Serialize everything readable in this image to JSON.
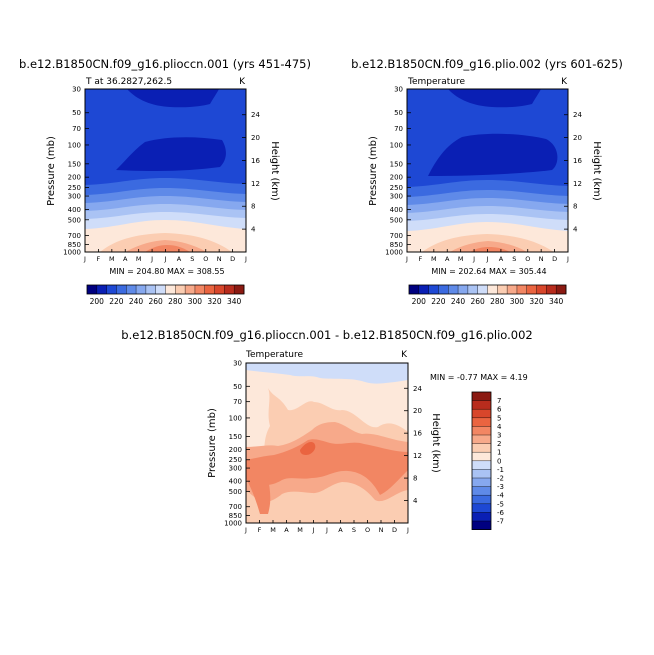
{
  "colors": {
    "cool": [
      "#000080",
      "#0a1fb4",
      "#1e48d4",
      "#3b6ae0",
      "#5f8ae8",
      "#86a8ef",
      "#aac3f4",
      "#cfddf9"
    ],
    "warm": [
      "#fde8da",
      "#fbcdb2",
      "#f7a98a",
      "#f28663",
      "#ea6440",
      "#d8462b",
      "#b82c1d",
      "#8b1a12"
    ]
  },
  "chart_data": [
    {
      "id": "panel-a",
      "type": "contour",
      "title": "b.e12.B1850CN.f09_g16.plioccn.001 (yrs 451-475)",
      "subtitle_left": "T at 36.2827,262.5",
      "subtitle_right": "K",
      "ylabel": "Pressure (mb)",
      "ylabel_right": "Height (km)",
      "months": [
        "J",
        "F",
        "M",
        "A",
        "M",
        "J",
        "J",
        "A",
        "S",
        "O",
        "N",
        "D",
        "J"
      ],
      "pressure_ticks": [
        30,
        50,
        70,
        100,
        150,
        200,
        250,
        300,
        400,
        500,
        700,
        850,
        1000
      ],
      "height_ticks": [
        4,
        8,
        12,
        16,
        20,
        24
      ],
      "minmax_label": "MIN = 204.80  MAX = 308.55",
      "min": 204.8,
      "max": 308.55,
      "colorbar_labels": [
        "200",
        "220",
        "240",
        "260",
        "280",
        "300",
        "320",
        "340"
      ],
      "colorbar_levels": [
        190,
        200,
        210,
        220,
        230,
        240,
        250,
        260,
        270,
        280,
        290,
        300,
        310,
        320,
        330,
        340,
        350
      ]
    },
    {
      "id": "panel-b",
      "type": "contour",
      "title": "b.e12.B1850CN.f09_g16.plio.002 (yrs 601-625)",
      "subtitle_left": "Temperature",
      "subtitle_right": "K",
      "ylabel": "Pressure (mb)",
      "ylabel_right": "Height (km)",
      "months": [
        "J",
        "F",
        "M",
        "A",
        "M",
        "J",
        "J",
        "A",
        "S",
        "O",
        "N",
        "D",
        "J"
      ],
      "pressure_ticks": [
        30,
        50,
        70,
        100,
        150,
        200,
        250,
        300,
        400,
        500,
        700,
        850,
        1000
      ],
      "height_ticks": [
        4,
        8,
        12,
        16,
        20,
        24
      ],
      "minmax_label": "MIN = 202.64  MAX = 305.44",
      "min": 202.64,
      "max": 305.44,
      "colorbar_labels": [
        "200",
        "220",
        "240",
        "260",
        "280",
        "300",
        "320",
        "340"
      ],
      "colorbar_levels": [
        190,
        200,
        210,
        220,
        230,
        240,
        250,
        260,
        270,
        280,
        290,
        300,
        310,
        320,
        330,
        340,
        350
      ]
    },
    {
      "id": "panel-c",
      "type": "contour",
      "title": "b.e12.B1850CN.f09_g16.plioccn.001 - b.e12.B1850CN.f09_g16.plio.002",
      "subtitle_left": "Temperature",
      "subtitle_right": "K",
      "ylabel": "Pressure (mb)",
      "ylabel_right": "Height (km)",
      "months": [
        "J",
        "F",
        "M",
        "A",
        "M",
        "J",
        "J",
        "A",
        "S",
        "O",
        "N",
        "D",
        "J"
      ],
      "pressure_ticks": [
        30,
        50,
        70,
        100,
        150,
        200,
        250,
        300,
        400,
        500,
        700,
        850,
        1000
      ],
      "height_ticks": [
        4,
        8,
        12,
        16,
        20,
        24
      ],
      "minmax_label": "MIN = -0.77 MAX = 4.19",
      "min": -0.77,
      "max": 4.19,
      "colorbar_labels": [
        "7",
        "6",
        "5",
        "4",
        "3",
        "2",
        "1",
        "0",
        "-1",
        "-2",
        "-3",
        "-4",
        "-5",
        "-6",
        "-7"
      ]
    }
  ]
}
